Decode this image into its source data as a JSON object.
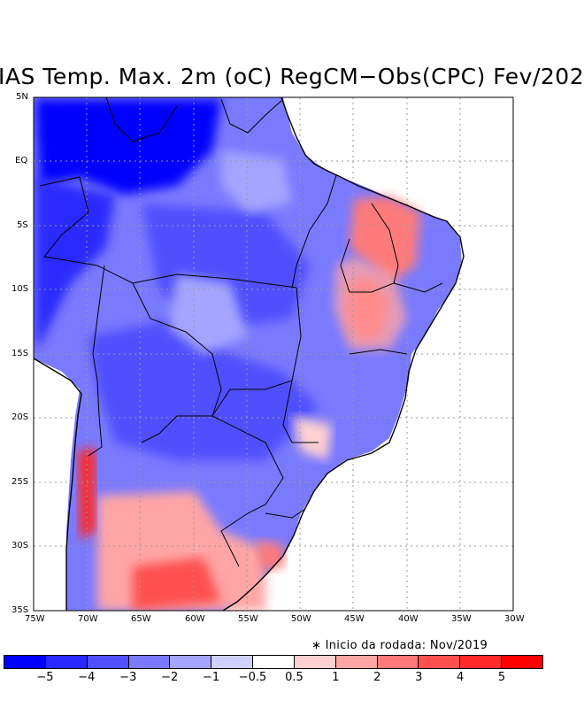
{
  "title": "IAS Temp. Max. 2m (oC) RegCM−Obs(CPC) Fev/202",
  "lat_labels": [
    "5N",
    "EQ",
    "5S",
    "10S",
    "15S",
    "20S",
    "25S",
    "30S",
    "35S"
  ],
  "lon_labels": [
    "75W",
    "70W",
    "65W",
    "60W",
    "55W",
    "50W",
    "45W",
    "40W",
    "35W",
    "30W"
  ],
  "note": "∗ Inicio da rodada: Nov/2019",
  "colorbar": {
    "colors": [
      "#0000ff",
      "#2a2aff",
      "#5050ff",
      "#7a7aff",
      "#a5a5ff",
      "#d0d0ff",
      "#ffffff",
      "#ffd0d0",
      "#ffa5a5",
      "#ff7a7a",
      "#ff5050",
      "#ff2a2a",
      "#ff0000"
    ],
    "labels": [
      "−5",
      "−4",
      "−3",
      "−2",
      "−1",
      "−0.5",
      "0.5",
      "1",
      "2",
      "3",
      "4",
      "5"
    ]
  },
  "map": {
    "lon_range": [
      -75,
      -30
    ],
    "lat_range": [
      -35,
      5
    ],
    "grid": true
  }
}
